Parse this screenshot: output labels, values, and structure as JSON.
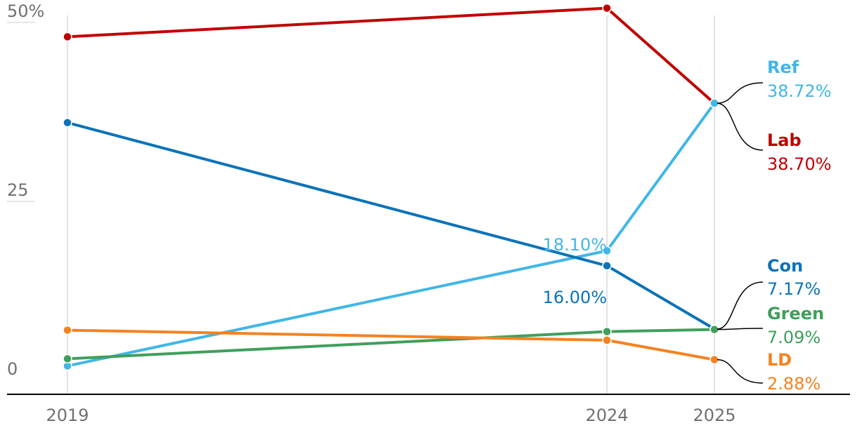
{
  "chart_data": {
    "type": "line",
    "x": [
      "2019",
      "2024",
      "2025"
    ],
    "y_ticks": [
      "50%",
      "25",
      "0"
    ],
    "ylim": [
      0,
      52
    ],
    "grid": "vertical lines at x points",
    "series": [
      {
        "name": "Lab",
        "color": "#c00000",
        "values": [
          48.0,
          52.0,
          38.7
        ],
        "end_label": "38.70%"
      },
      {
        "name": "Ref",
        "color": "#41b6e6",
        "values": [
          2.0,
          18.1,
          38.72
        ],
        "end_label": "38.72%",
        "mid_label": "18.10%"
      },
      {
        "name": "Con",
        "color": "#0b73b8",
        "values": [
          36.0,
          16.0,
          7.17
        ],
        "end_label": "7.17%",
        "mid_label": "16.00%"
      },
      {
        "name": "Green",
        "color": "#3f9f5c",
        "values": [
          3.0,
          6.8,
          7.09
        ],
        "end_label": "7.09%"
      },
      {
        "name": "LD",
        "color": "#f58220",
        "values": [
          7.0,
          5.6,
          2.88
        ],
        "end_label": "2.88%"
      }
    ]
  }
}
